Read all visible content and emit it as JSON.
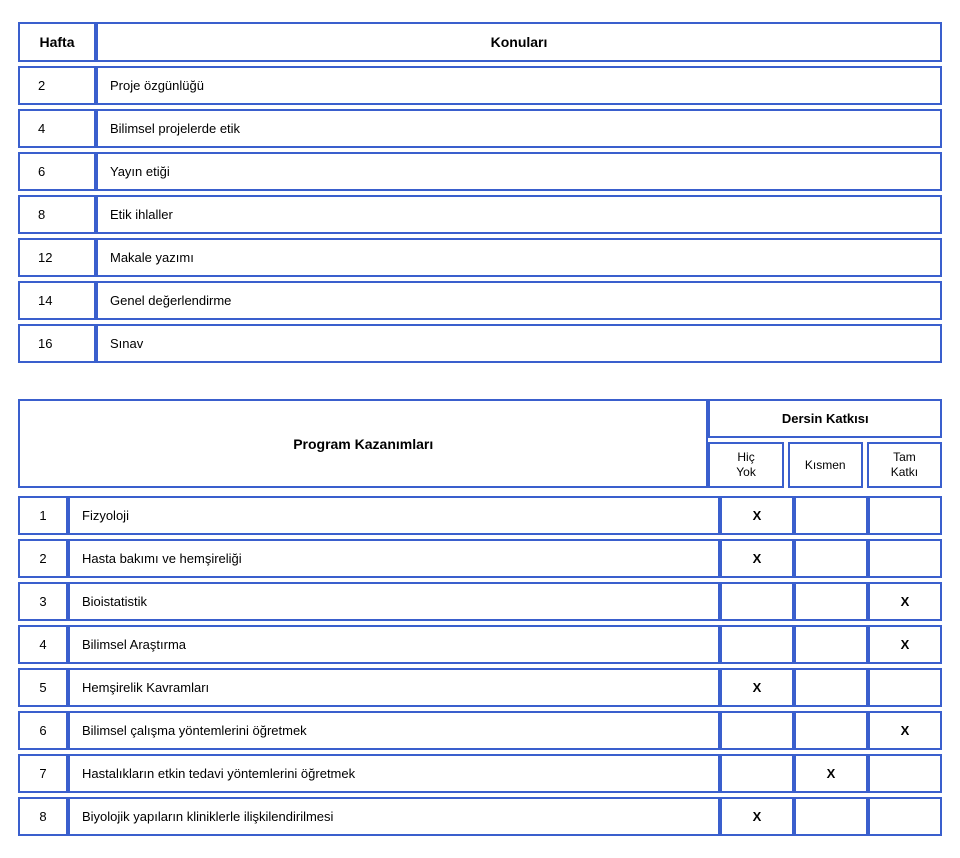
{
  "weeks": {
    "header_left": "Hafta",
    "header_right": "Konuları",
    "rows": [
      {
        "n": "2",
        "t": "Proje özgünlüğü"
      },
      {
        "n": "4",
        "t": "Bilimsel projelerde etik"
      },
      {
        "n": "6",
        "t": "Yayın etiği"
      },
      {
        "n": "8",
        "t": "Etik ihlaller"
      },
      {
        "n": "12",
        "t": "Makale yazımı"
      },
      {
        "n": "14",
        "t": "Genel değerlendirme"
      },
      {
        "n": "16",
        "t": "Sınav"
      }
    ]
  },
  "contrib": {
    "program_title": "Program Kazanımları",
    "dersin_title": "Dersin Katkısı",
    "cols": {
      "c1": "Hiç\nYok",
      "c2": "Kısmen",
      "c3": "Tam\nKatkı"
    },
    "mark": "X",
    "rows": [
      {
        "n": "1",
        "t": "Fizyoloji",
        "m": [
          true,
          false,
          false
        ]
      },
      {
        "n": "2",
        "t": "Hasta bakımı ve hemşireliği",
        "m": [
          true,
          false,
          false
        ]
      },
      {
        "n": "3",
        "t": "Bioistatistik",
        "m": [
          false,
          false,
          true
        ]
      },
      {
        "n": "4",
        "t": "Bilimsel Araştırma",
        "m": [
          false,
          false,
          true
        ]
      },
      {
        "n": "5",
        "t": "Hemşirelik Kavramları",
        "m": [
          true,
          false,
          false
        ]
      },
      {
        "n": "6",
        "t": "Bilimsel çalışma yöntemlerini öğretmek",
        "m": [
          false,
          false,
          true
        ]
      },
      {
        "n": "7",
        "t": "Hastalıkların etkin tedavi yöntemlerini öğretmek",
        "m": [
          false,
          true,
          false
        ]
      },
      {
        "n": "8",
        "t": "Biyolojik yapıların kliniklerle ilişkilendirilmesi",
        "m": [
          true,
          false,
          false
        ]
      }
    ]
  },
  "colors": {
    "border": "#3a5fcd",
    "bg": "#ffffff",
    "text": "#000000"
  }
}
